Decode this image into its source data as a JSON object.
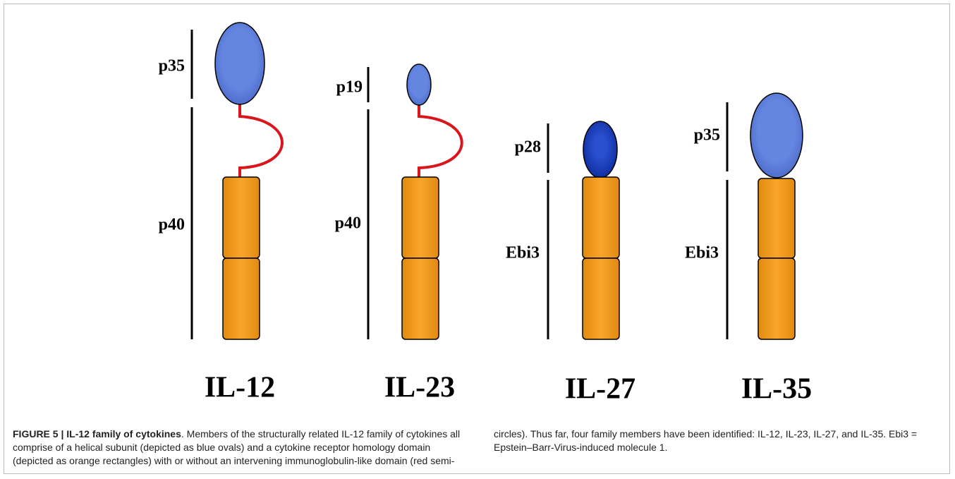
{
  "figure": {
    "panels": [
      {
        "name": "IL-12",
        "labels": [
          "p35",
          "p40"
        ]
      },
      {
        "name": "IL-23",
        "labels": [
          "p19",
          "p40"
        ]
      },
      {
        "name": "IL-27",
        "labels": [
          "p28",
          "Ebi3"
        ]
      },
      {
        "name": "IL-35",
        "labels": [
          "p35",
          "Ebi3"
        ]
      }
    ],
    "caption": {
      "label": "FIGURE 5 | IL-12 family of cytokines",
      "text": ". Members of the structurally related IL-12 family of cytokines all comprise of a helical subunit (depicted as blue ovals) and a cytokine receptor homology domain (depicted as orange rectangles) with or without an intervening immunoglobulin-like domain (red semi-circles). Thus far, four family members have been identified: IL-12, IL-23, IL-27, and IL-35. Ebi3 = Epstein–Barr-Virus-induced molecule 1."
    }
  }
}
